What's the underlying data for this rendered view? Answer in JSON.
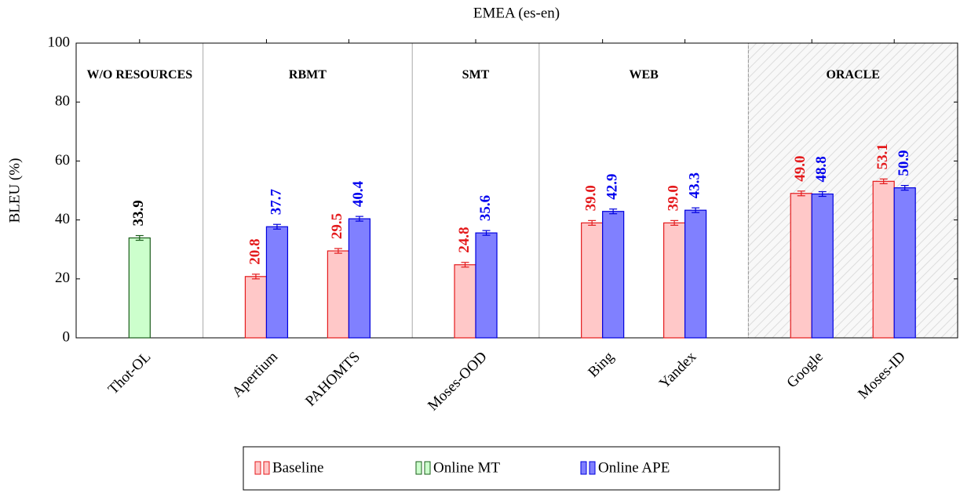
{
  "chart_data": {
    "type": "bar",
    "title": "EMEA (es-en)",
    "y_label": "BLEU (%)",
    "groups": [
      {
        "label": "W/O RESOURCES",
        "categories": [
          "Thot-OL"
        ]
      },
      {
        "label": "RBMT",
        "categories": [
          "Apertium",
          "PAHOMTS"
        ]
      },
      {
        "label": "SMT",
        "categories": [
          "Moses-OOD"
        ]
      },
      {
        "label": "WEB",
        "categories": [
          "Bing",
          "Yandex"
        ]
      },
      {
        "label": "ORACLE",
        "categories": [
          "Google",
          "Moses-ID"
        ],
        "highlight": true
      }
    ],
    "series": [
      {
        "name": "Baseline",
        "color": "#e41a1c",
        "fill": "#ffc8c8",
        "label_color": "#e41a1c",
        "values": [
          null,
          20.8,
          29.5,
          24.8,
          39.0,
          39.0,
          49.0,
          53.1
        ],
        "value_labels": [
          null,
          "20.8",
          "29.5",
          "24.8",
          "39.0",
          "39.0",
          "49.0",
          "53.1"
        ],
        "errors": [
          null,
          0.8,
          0.8,
          0.8,
          0.8,
          0.8,
          0.8,
          0.8
        ]
      },
      {
        "name": "Online MT",
        "color": "#1a5c1a",
        "fill": "#ccffcc",
        "label_color": "#000000",
        "values": [
          33.9,
          null,
          null,
          null,
          null,
          null,
          null,
          null
        ],
        "value_labels": [
          "33.9",
          null,
          null,
          null,
          null,
          null,
          null,
          null
        ],
        "errors": [
          0.8,
          null,
          null,
          null,
          null,
          null,
          null,
          null
        ]
      },
      {
        "name": "Online APE",
        "color": "#0000dd",
        "fill": "#8080ff",
        "label_color": "#0000ee",
        "values": [
          null,
          37.7,
          40.4,
          35.6,
          42.9,
          43.3,
          48.8,
          50.9
        ],
        "value_labels": [
          null,
          "37.7",
          "40.4",
          "35.6",
          "42.9",
          "43.3",
          "48.8",
          "50.9"
        ],
        "errors": [
          null,
          0.8,
          0.8,
          0.8,
          0.8,
          0.8,
          0.8,
          0.8
        ]
      }
    ],
    "ylim": [
      0,
      100
    ],
    "yticks": [
      0,
      20,
      40,
      60,
      80,
      100
    ]
  }
}
